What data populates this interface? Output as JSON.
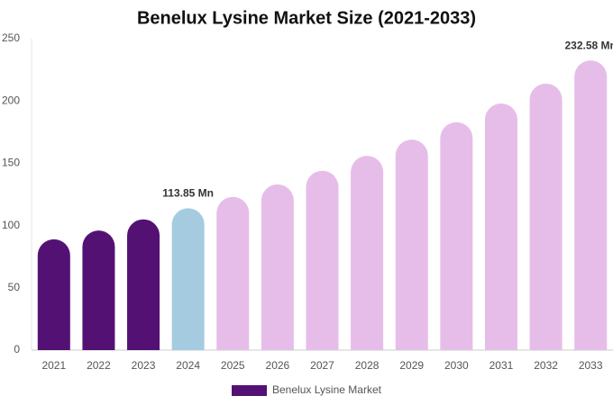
{
  "chart_data": {
    "type": "bar",
    "title": "Benelux Lysine Market Size (2021-2033)",
    "categories": [
      "2021",
      "2022",
      "2023",
      "2024",
      "2025",
      "2026",
      "2027",
      "2028",
      "2029",
      "2030",
      "2031",
      "2032",
      "2033"
    ],
    "series": [
      {
        "name": "Benelux Lysine Market",
        "color": "#541174",
        "values": [
          89,
          96,
          105,
          113.85,
          123,
          133,
          144,
          156,
          169,
          183,
          198,
          214,
          232.58
        ],
        "value_labels": [
          null,
          null,
          null,
          "113.85 Mn",
          null,
          null,
          null,
          null,
          null,
          null,
          null,
          null,
          "232.58 Mn"
        ],
        "colors": [
          "#541174",
          "#541174",
          "#541174",
          "#a5cbe0",
          "#e6bde8",
          "#e6bde8",
          "#e6bde8",
          "#e6bde8",
          "#e6bde8",
          "#e6bde8",
          "#e6bde8",
          "#e6bde8",
          "#e6bde8"
        ]
      }
    ],
    "ylim": [
      0,
      250
    ],
    "yticks": [
      0,
      50,
      100,
      150,
      200,
      250
    ],
    "grid": false
  }
}
